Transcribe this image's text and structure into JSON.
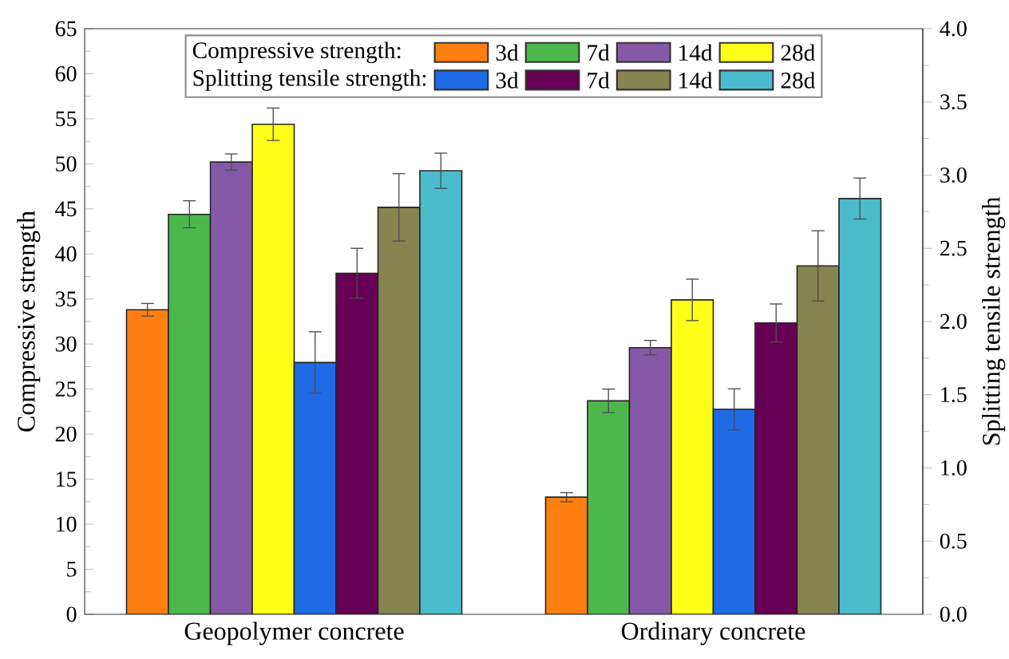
{
  "chart_data": {
    "type": "bar",
    "ylabel": "Compressive strength",
    "y2label": "Splitting tensile strength",
    "categories": [
      "Geopolymer concrete",
      "Ordinary concrete"
    ],
    "ylim": [
      0,
      65
    ],
    "yticks": [
      0,
      5,
      10,
      15,
      20,
      25,
      30,
      35,
      40,
      45,
      50,
      55,
      60,
      65
    ],
    "y2lim": [
      0,
      4
    ],
    "y2ticks": [
      {
        "value": 0,
        "label": "0.0"
      },
      {
        "value": 0.5,
        "label": "0.5"
      },
      {
        "value": 1,
        "label": "1.0"
      },
      {
        "value": 1.5,
        "label": "1.5"
      },
      {
        "value": 2,
        "label": "2.0"
      },
      {
        "value": 2.5,
        "label": "2.5"
      },
      {
        "value": 3,
        "label": "3.0"
      },
      {
        "value": 3.5,
        "label": "3.5"
      },
      {
        "value": 4,
        "label": "4.0"
      }
    ],
    "legend": "top",
    "annotations": [
      "Compressive strength:",
      "Splitting tensile strength:"
    ],
    "series": [
      {
        "name": "3d",
        "color": "#ff8010",
        "values": [
          33.8,
          13.0
        ],
        "errors": [
          0.7,
          0.5
        ]
      },
      {
        "name": "7d",
        "color": "#4cb84c",
        "values": [
          44.4,
          23.7
        ],
        "errors": [
          1.5,
          1.3
        ]
      },
      {
        "name": "14d",
        "color": "#8559a8",
        "values": [
          50.2,
          29.6
        ],
        "errors": [
          0.9,
          0.8
        ]
      },
      {
        "name": "28d",
        "color": "#ffff1a",
        "values": [
          54.4,
          34.9
        ],
        "errors": [
          1.8,
          2.3
        ]
      },
      {
        "name": "3d",
        "color": "#1f6be6",
        "axis": "y2",
        "values": [
          1.72,
          1.4
        ],
        "errors": [
          0.21,
          0.14
        ]
      },
      {
        "name": "7d",
        "color": "#660055",
        "axis": "y2",
        "values": [
          2.33,
          1.99
        ],
        "errors": [
          0.17,
          0.13
        ]
      },
      {
        "name": "14d",
        "color": "#868450",
        "axis": "y2",
        "values": [
          2.78,
          2.38
        ],
        "errors": [
          0.23,
          0.24
        ]
      },
      {
        "name": "28d",
        "color": "#4bbccc",
        "axis": "y2",
        "values": [
          3.03,
          2.84
        ],
        "errors": [
          0.12,
          0.14
        ]
      }
    ]
  }
}
